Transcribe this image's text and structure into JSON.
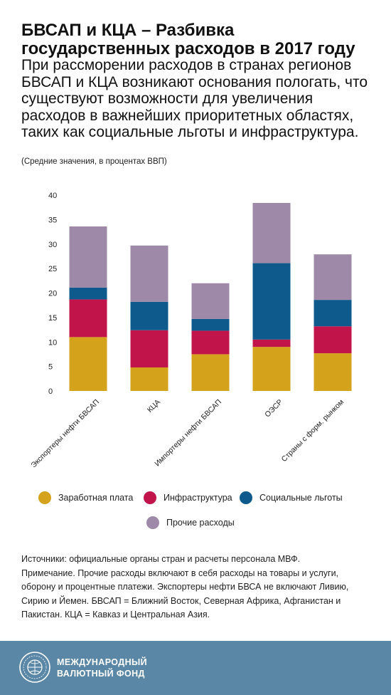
{
  "title": "БВСАП и КЦА – Разбивка государственных расходов в 2017 году",
  "subtitle": "При рассморении расходов в странах регионов БВСАП и КЦА возникают основания пологать, что существуют возможности для увеличения расходов в важнейших приоритетных областях, таких как социальные льготы и инфраструктура.",
  "note": "(Средние значения, в процентах ВВП)",
  "chart_data": {
    "type": "bar",
    "stacked": true,
    "categories": [
      "Экспортеры нефти БВСАП",
      "КЦА",
      "Импортеры нефти БВСАП",
      "ОЭСР",
      "Страны с форм. рынком"
    ],
    "series": [
      {
        "name": "Заработная плата",
        "color": "#d5a21c",
        "values": [
          11.0,
          4.8,
          7.5,
          9.0,
          7.7
        ]
      },
      {
        "name": "Инфраструктура",
        "color": "#c0144b",
        "values": [
          7.7,
          7.6,
          4.8,
          1.5,
          5.5
        ]
      },
      {
        "name": "Социальные льготы",
        "color": "#0e5a8c",
        "values": [
          2.4,
          5.8,
          2.4,
          15.6,
          5.4
        ]
      },
      {
        "name": "Прочие расходы",
        "color": "#9e8aa8",
        "values": [
          12.5,
          11.5,
          7.3,
          12.3,
          9.3
        ]
      }
    ],
    "ylim": [
      0,
      40
    ],
    "yticks": [
      0,
      5,
      10,
      15,
      20,
      25,
      30,
      35,
      40
    ],
    "grid": false,
    "legend_position": "bottom"
  },
  "sources": [
    "Источники: официальные органы стран и расчеты персонала МВФ.",
    "Примечание. Прочие расходы включают в себя расходы на товары и услуги, оборону и процентные платежи. Экспортеры нефти БВСА не включают Ливию, Сирию и Йемен. БВСАП = Ближний Восток, Северная Африка, Афганистан и Пакистан. КЦА = Кавказ и Центральная Азия."
  ],
  "footer": {
    "line1": "МЕЖДУНАРОДНЫЙ",
    "line2": "ВАЛЮТНЫЙ ФОНД",
    "logo_icon": "imf-seal-icon"
  }
}
